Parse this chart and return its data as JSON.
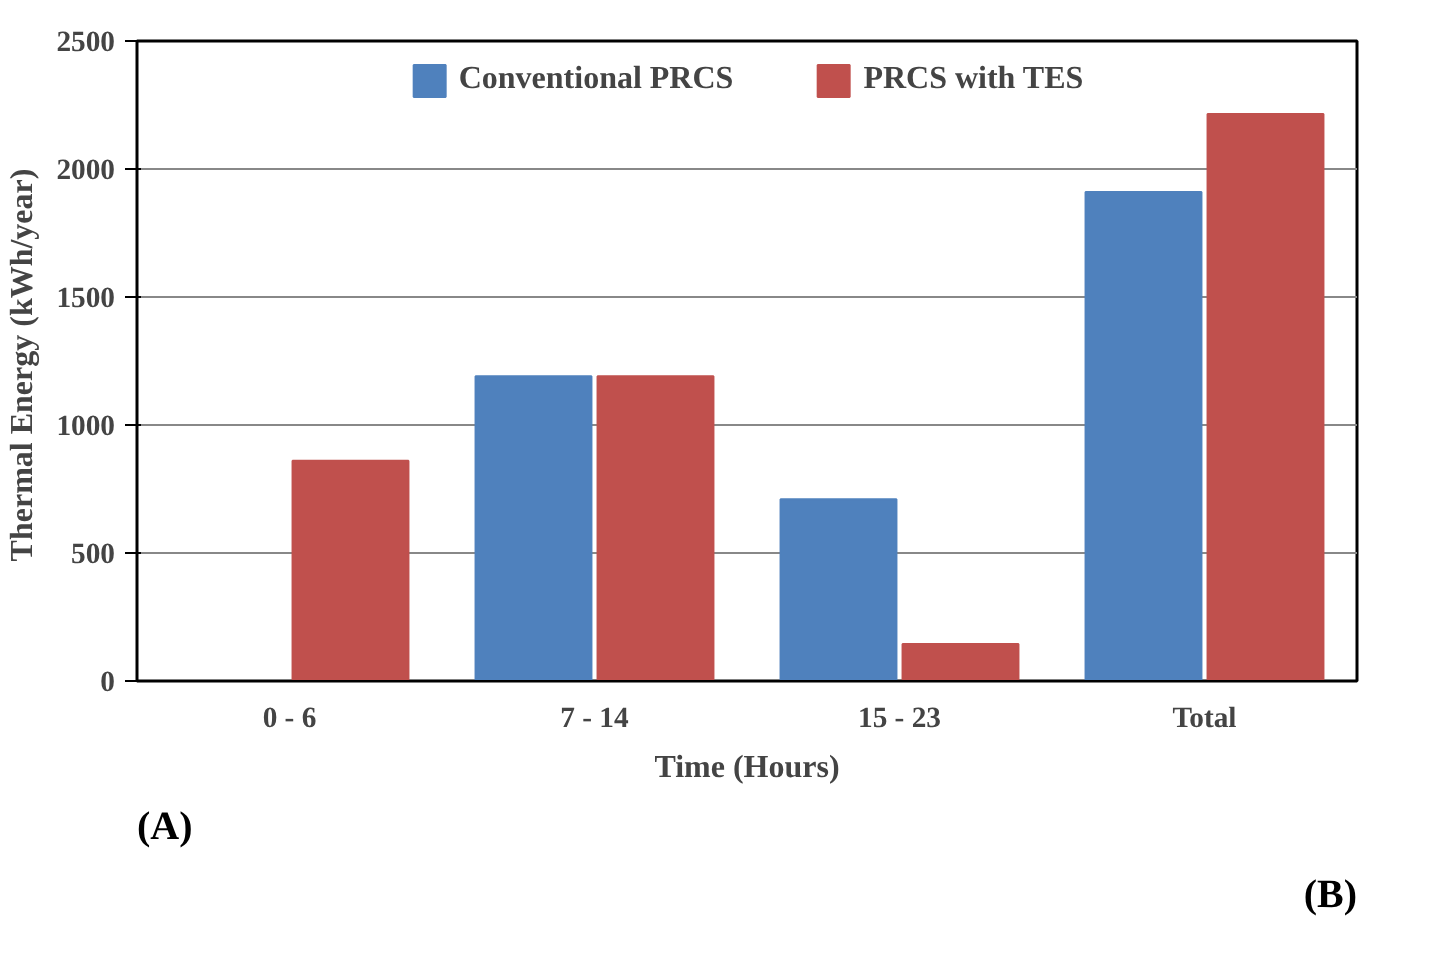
{
  "chart_data": {
    "type": "bar",
    "xlabel": "Time (Hours)",
    "ylabel": "Thermal  Energy (kWh/year)",
    "categories": [
      "0 - 6",
      "7 - 14",
      "15 - 23",
      "Total"
    ],
    "series": [
      {
        "name": "Conventional PRCS",
        "color": "#4f81bd",
        "values": [
          0,
          1190,
          710,
          1910
        ]
      },
      {
        "name": "PRCS with TES",
        "color": "#c0504d",
        "values": [
          860,
          1190,
          145,
          2215
        ]
      }
    ],
    "ylim": [
      0,
      2500
    ],
    "yticks": [
      0,
      500,
      1000,
      1500,
      2000,
      2500
    ],
    "grid": "y",
    "legend": "top",
    "annotations": [
      "(A)",
      "(B)"
    ]
  }
}
